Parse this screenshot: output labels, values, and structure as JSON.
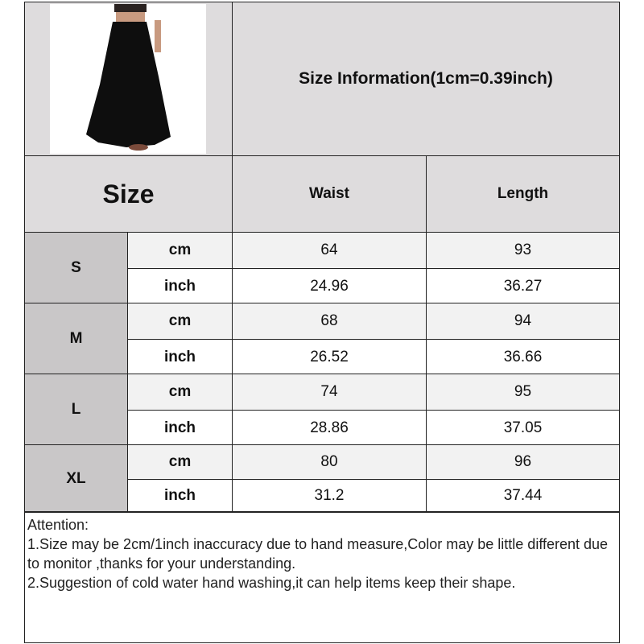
{
  "title": "Size Information(1cm=0.39inch)",
  "header": {
    "size": "Size",
    "waist": "Waist",
    "length": "Length"
  },
  "rows": [
    {
      "size": "S",
      "cm": {
        "unit": "cm",
        "waist": "64",
        "length": "93"
      },
      "inch": {
        "unit": "inch",
        "waist": "24.96",
        "length": "36.27"
      }
    },
    {
      "size": "M",
      "cm": {
        "unit": "cm",
        "waist": "68",
        "length": "94"
      },
      "inch": {
        "unit": "inch",
        "waist": "26.52",
        "length": "36.66"
      }
    },
    {
      "size": "L",
      "cm": {
        "unit": "cm",
        "waist": "74",
        "length": "95"
      },
      "inch": {
        "unit": "inch",
        "waist": "28.86",
        "length": "37.05"
      }
    },
    {
      "size": "XL",
      "cm": {
        "unit": "cm",
        "waist": "80",
        "length": "96"
      },
      "inch": {
        "unit": "inch",
        "waist": "31.2",
        "length": "37.44"
      }
    }
  ],
  "attention": [
    "Attention:",
    "1.Size may be 2cm/1inch inaccuracy due to hand measure,Color may be little different due to monitor ,thanks for your understanding.",
    "2.Suggestion of cold water hand washing,it can help items keep their shape."
  ]
}
